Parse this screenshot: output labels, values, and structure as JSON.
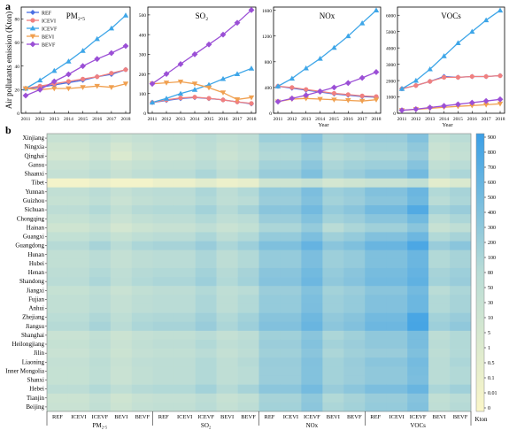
{
  "panel_labels": {
    "a": "a",
    "b": "b"
  },
  "colors": {
    "REF": "#4a6fe3",
    "ICEVI": "#f08080",
    "ICEVF": "#3ea6e8",
    "BEVI": "#f0a050",
    "BEVF": "#9b4fd6",
    "heat_low": "#fbf6c8",
    "heat_mid": "#b9dcd6",
    "heat_high": "#3b9fe6"
  },
  "chart_data": [
    {
      "type": "line",
      "title": "PM₂.₅",
      "ylabel": "Air pollutants emission (Kton)",
      "xlabel": "",
      "x": [
        2011,
        2012,
        2013,
        2014,
        2015,
        2016,
        2017,
        2018
      ],
      "ylim": [
        0,
        90
      ],
      "yticks": [
        0,
        20,
        40,
        60,
        80
      ],
      "series": [
        {
          "name": "REF",
          "values": [
            21,
            22,
            24,
            26,
            28,
            31,
            33,
            37
          ]
        },
        {
          "name": "ICEVI",
          "values": [
            21,
            23,
            25,
            27,
            29,
            31,
            34,
            37
          ]
        },
        {
          "name": "ICEVF",
          "values": [
            21,
            28,
            36,
            44,
            53,
            63,
            72,
            83
          ]
        },
        {
          "name": "BEVI",
          "values": [
            21,
            20,
            21,
            21,
            22,
            23,
            22,
            25
          ]
        },
        {
          "name": "BEVF",
          "values": [
            15,
            20,
            27,
            33,
            40,
            46,
            51,
            57
          ]
        }
      ]
    },
    {
      "type": "line",
      "title": "SO₂",
      "xlabel": "",
      "x": [
        2011,
        2012,
        2013,
        2014,
        2015,
        2016,
        2017,
        2018
      ],
      "ylim": [
        0,
        540
      ],
      "yticks": [
        0,
        100,
        200,
        300,
        400,
        500
      ],
      "series": [
        {
          "name": "REF",
          "values": [
            55,
            65,
            75,
            80,
            75,
            68,
            58,
            48
          ]
        },
        {
          "name": "ICEVI",
          "values": [
            55,
            68,
            78,
            82,
            76,
            68,
            58,
            50
          ]
        },
        {
          "name": "ICEVF",
          "values": [
            55,
            75,
            100,
            120,
            145,
            175,
            200,
            228
          ]
        },
        {
          "name": "BEVI",
          "values": [
            150,
            155,
            160,
            150,
            130,
            105,
            70,
            80
          ]
        },
        {
          "name": "BEVF",
          "values": [
            150,
            200,
            250,
            300,
            350,
            400,
            460,
            525
          ]
        }
      ]
    },
    {
      "type": "line",
      "title": "NOx",
      "xlabel": "Year",
      "x": [
        2011,
        2012,
        2013,
        2014,
        2015,
        2016,
        2017,
        2018
      ],
      "ylim": [
        0,
        1650
      ],
      "yticks": [
        0,
        400,
        800,
        1200,
        1600
      ],
      "series": [
        {
          "name": "REF",
          "values": [
            420,
            390,
            360,
            330,
            300,
            280,
            260,
            250
          ]
        },
        {
          "name": "ICEVI",
          "values": [
            420,
            400,
            370,
            340,
            310,
            290,
            270,
            260
          ]
        },
        {
          "name": "ICEVF",
          "values": [
            420,
            540,
            700,
            850,
            1020,
            1200,
            1400,
            1600
          ]
        },
        {
          "name": "BEVI",
          "values": [
            180,
            220,
            230,
            220,
            210,
            200,
            190,
            210
          ]
        },
        {
          "name": "BEVF",
          "values": [
            180,
            230,
            280,
            340,
            400,
            470,
            550,
            640
          ]
        }
      ]
    },
    {
      "type": "line",
      "title": "VOCs",
      "xlabel": "Year",
      "x": [
        2011,
        2012,
        2013,
        2014,
        2015,
        2016,
        2017,
        2018
      ],
      "ylim": [
        0,
        6500
      ],
      "yticks": [
        0,
        1000,
        2000,
        3000,
        4000,
        5000,
        6000
      ],
      "series": [
        {
          "name": "REF",
          "values": [
            1500,
            1700,
            1950,
            2250,
            2200,
            2250,
            2250,
            2300
          ]
        },
        {
          "name": "ICEVI",
          "values": [
            1500,
            1700,
            1950,
            2200,
            2200,
            2250,
            2250,
            2300
          ]
        },
        {
          "name": "ICEVF",
          "values": [
            1500,
            2000,
            2700,
            3500,
            4300,
            5000,
            5700,
            6300
          ]
        },
        {
          "name": "BEVI",
          "values": [
            180,
            240,
            300,
            370,
            420,
            470,
            520,
            580
          ]
        },
        {
          "name": "BEVF",
          "values": [
            180,
            250,
            350,
            450,
            550,
            650,
            750,
            850
          ]
        }
      ]
    },
    {
      "type": "heatmap",
      "provinces": [
        "Xinjiang",
        "Ningxia",
        "Qinghai",
        "Gansu",
        "Shaanxi",
        "Tibet",
        "Yunnan",
        "Guizhou",
        "Sichuan",
        "Chongqing",
        "Hainan",
        "Guangxi",
        "Guangdong",
        "Hunan",
        "Hubei",
        "Henan",
        "Shandong",
        "Jiangxi",
        "Fujian",
        "Anhui",
        "Zhejiang",
        "Jiangsu",
        "Shanghai",
        "Heilongjiang",
        "Jilin",
        "Liaoning",
        "Inner Mongolia",
        "Shanxi",
        "Hebei",
        "Tianjin",
        "Beijing"
      ],
      "groups": [
        {
          "name": "PM₂.₅",
          "columns": [
            "REF",
            "ICEVI",
            "ICEVF",
            "BEVI",
            "BEVF"
          ]
        },
        {
          "name": "SO₂",
          "columns": [
            "REF",
            "ICEVI",
            "ICEVF",
            "BEVI",
            "BEVF"
          ]
        },
        {
          "name": "NOx",
          "columns": [
            "REF",
            "ICEVI",
            "ICEVF",
            "BEVI",
            "BEVF"
          ]
        },
        {
          "name": "VOCs",
          "columns": [
            "REF",
            "ICEVI",
            "ICEVF",
            "BEVI",
            "BEVF"
          ]
        }
      ],
      "colorbar": {
        "label": "Kton",
        "ticks": [
          "900",
          "800",
          "700",
          "600",
          "500",
          "400",
          "300",
          "200",
          "100",
          "80",
          "50",
          "30",
          "10",
          "5",
          "1",
          "0.5",
          "0.1",
          "0.01",
          "0"
        ]
      },
      "values": [
        [
          0.6,
          0.6,
          1,
          0.5,
          0.8,
          1,
          1,
          2,
          1,
          1.5,
          8,
          8,
          25,
          5,
          8,
          10,
          10,
          30,
          1,
          2
        ],
        [
          0.3,
          0.3,
          0.6,
          0.2,
          0.5,
          0.8,
          0.8,
          1.5,
          0.6,
          1,
          4,
          4,
          12,
          3,
          4,
          6,
          6,
          15,
          0.5,
          1
        ],
        [
          0.2,
          0.2,
          0.4,
          0.1,
          0.3,
          0.5,
          0.5,
          1,
          0.4,
          0.8,
          3,
          3,
          8,
          2,
          3,
          4,
          4,
          10,
          0.4,
          0.8
        ],
        [
          0.5,
          0.5,
          0.9,
          0.4,
          0.7,
          1,
          1,
          2,
          0.8,
          1.5,
          6,
          6,
          18,
          4,
          6,
          8,
          8,
          25,
          1,
          2
        ],
        [
          0.8,
          0.8,
          1.5,
          0.6,
          1.2,
          2,
          2,
          4,
          1.5,
          3,
          10,
          10,
          35,
          6,
          10,
          20,
          20,
          60,
          2,
          4
        ],
        [
          0.01,
          0.01,
          0.02,
          0.01,
          0.01,
          0.02,
          0.02,
          0.05,
          0.02,
          0.03,
          0.3,
          0.3,
          0.6,
          0.2,
          0.3,
          0.5,
          0.5,
          1,
          0.05,
          0.1
        ],
        [
          1,
          1,
          2,
          0.8,
          1.5,
          2,
          2,
          4,
          1.5,
          3,
          12,
          12,
          40,
          8,
          12,
          30,
          30,
          90,
          3,
          5
        ],
        [
          0.7,
          0.7,
          1.4,
          0.5,
          1,
          1.5,
          1.5,
          3,
          1.2,
          2,
          9,
          9,
          30,
          6,
          9,
          20,
          20,
          70,
          2,
          4
        ],
        [
          1.5,
          1.5,
          3,
          1,
          2.5,
          3,
          3,
          6,
          2.5,
          5,
          20,
          20,
          60,
          12,
          20,
          60,
          60,
          300,
          6,
          10
        ],
        [
          0.7,
          0.7,
          1.4,
          0.5,
          1,
          1.5,
          1.5,
          3,
          1.2,
          2,
          9,
          9,
          28,
          6,
          9,
          20,
          20,
          65,
          2,
          4
        ],
        [
          0.3,
          0.3,
          0.6,
          0.2,
          0.4,
          0.6,
          0.6,
          1.2,
          0.5,
          0.9,
          4,
          4,
          12,
          2,
          4,
          7,
          7,
          20,
          0.6,
          1.2
        ],
        [
          0.9,
          0.9,
          1.8,
          0.7,
          1.4,
          2,
          2,
          4,
          1.5,
          3,
          12,
          12,
          38,
          7,
          12,
          30,
          30,
          80,
          3,
          5
        ],
        [
          2.5,
          2.5,
          5,
          2,
          4,
          5,
          5,
          10,
          4,
          8,
          35,
          35,
          120,
          20,
          35,
          100,
          100,
          400,
          10,
          20
        ],
        [
          1,
          1,
          2,
          0.8,
          1.5,
          2,
          2,
          4,
          1.5,
          3,
          12,
          12,
          40,
          8,
          12,
          35,
          35,
          90,
          3,
          5
        ],
        [
          1,
          1,
          2,
          0.8,
          1.5,
          2,
          2,
          4,
          1.5,
          3,
          12,
          12,
          40,
          8,
          12,
          35,
          35,
          90,
          3,
          5
        ],
        [
          1.5,
          1.5,
          3,
          1.2,
          2.5,
          3,
          3,
          6,
          2.5,
          5,
          20,
          20,
          65,
          12,
          20,
          50,
          50,
          120,
          5,
          8
        ],
        [
          2,
          2,
          4,
          1.5,
          3,
          4,
          4,
          8,
          3,
          6,
          25,
          25,
          80,
          15,
          25,
          60,
          60,
          150,
          6,
          10
        ],
        [
          0.7,
          0.7,
          1.4,
          0.5,
          1,
          1.5,
          1.5,
          3,
          1.2,
          2,
          9,
          9,
          28,
          6,
          9,
          20,
          20,
          60,
          2,
          4
        ],
        [
          1,
          1,
          2,
          0.8,
          1.5,
          2,
          2,
          4,
          1.5,
          3,
          12,
          12,
          38,
          8,
          12,
          30,
          30,
          85,
          3,
          5
        ],
        [
          1,
          1,
          2,
          0.8,
          1.5,
          2,
          2,
          4,
          1.5,
          3,
          12,
          12,
          40,
          8,
          12,
          30,
          30,
          85,
          3,
          5
        ],
        [
          1.8,
          1.8,
          3.5,
          1.4,
          3,
          3.5,
          3.5,
          7,
          3,
          6,
          22,
          22,
          75,
          14,
          22,
          60,
          60,
          450,
          6,
          10
        ],
        [
          2.5,
          2.5,
          5,
          2,
          4,
          5,
          5,
          10,
          4,
          8,
          30,
          30,
          100,
          18,
          30,
          80,
          80,
          500,
          8,
          15
        ],
        [
          0.5,
          0.5,
          1,
          0.4,
          0.8,
          1,
          1,
          2,
          0.8,
          1.5,
          7,
          7,
          20,
          4,
          7,
          15,
          15,
          45,
          1.5,
          3
        ],
        [
          0.7,
          0.7,
          1.4,
          0.5,
          1,
          1.5,
          1.5,
          3,
          1.2,
          2,
          9,
          9,
          28,
          6,
          9,
          15,
          15,
          45,
          2,
          3
        ],
        [
          0.5,
          0.5,
          1,
          0.4,
          0.8,
          1,
          1,
          2,
          0.8,
          1.5,
          7,
          7,
          20,
          4,
          7,
          10,
          10,
          35,
          1.5,
          3
        ],
        [
          0.8,
          0.8,
          1.6,
          0.6,
          1.2,
          1.5,
          1.5,
          3,
          1.2,
          2.5,
          10,
          10,
          30,
          6,
          10,
          20,
          20,
          55,
          2,
          4
        ],
        [
          0.7,
          0.7,
          1.4,
          0.5,
          1,
          1.5,
          1.5,
          3,
          1.2,
          2,
          9,
          9,
          28,
          6,
          9,
          15,
          15,
          45,
          2,
          3
        ],
        [
          0.7,
          0.7,
          1.4,
          0.5,
          1,
          1.5,
          1.5,
          3,
          1.2,
          2,
          9,
          9,
          28,
          6,
          9,
          15,
          15,
          40,
          2,
          3
        ],
        [
          1.5,
          1.5,
          3,
          1.2,
          2.5,
          3,
          3,
          6,
          2.5,
          5,
          18,
          18,
          55,
          10,
          18,
          40,
          40,
          100,
          4,
          7
        ],
        [
          0.4,
          0.4,
          0.8,
          0.3,
          0.6,
          0.8,
          0.8,
          1.5,
          0.6,
          1,
          5,
          5,
          15,
          3,
          5,
          10,
          10,
          25,
          1,
          2
        ],
        [
          0.5,
          0.5,
          1,
          0.4,
          0.8,
          1,
          1,
          2,
          0.8,
          1.5,
          6,
          6,
          18,
          4,
          6,
          12,
          12,
          30,
          1.2,
          2.5
        ]
      ]
    }
  ]
}
